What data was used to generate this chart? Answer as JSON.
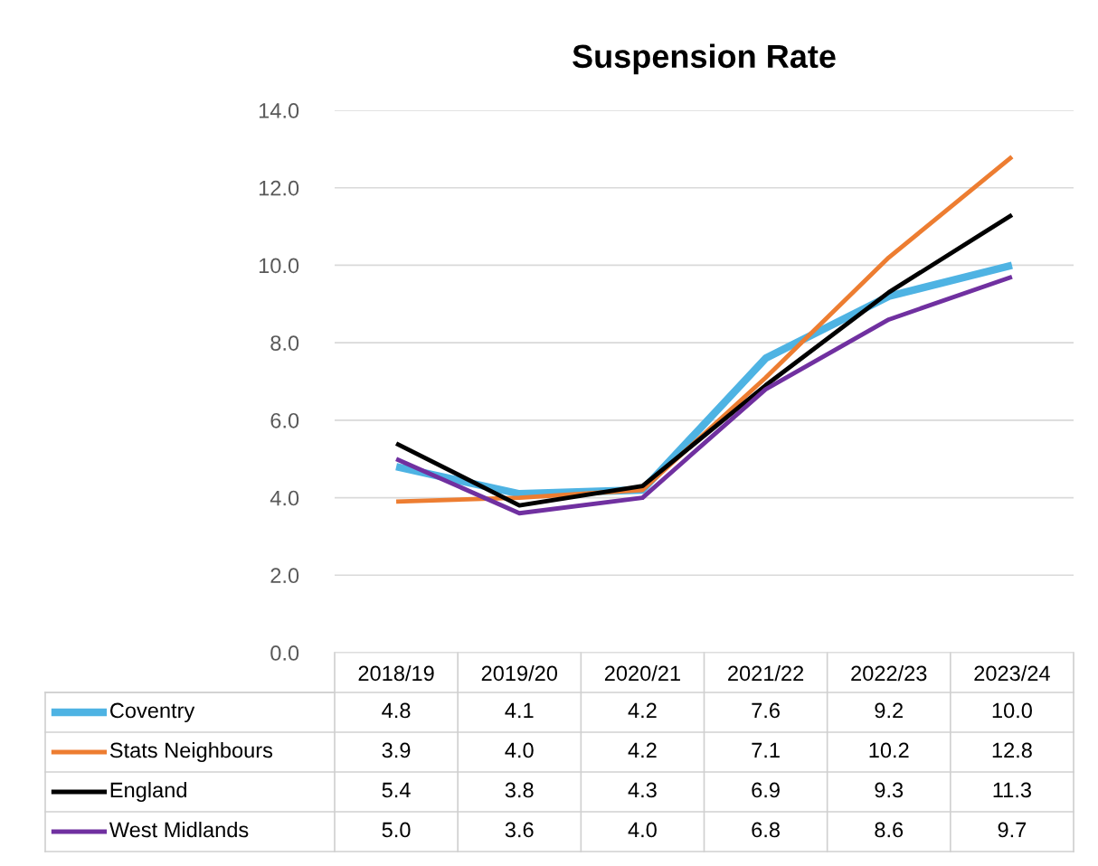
{
  "chart_data": {
    "type": "line",
    "title": "Suspension Rate",
    "categories": [
      "2018/19",
      "2019/20",
      "2020/21",
      "2021/22",
      "2022/23",
      "2023/24"
    ],
    "series": [
      {
        "name": "Coventry",
        "color": "#4eb3e3",
        "values": [
          4.8,
          4.1,
          4.2,
          7.6,
          9.2,
          10.0
        ],
        "value_labels": [
          "4.8",
          "4.1",
          "4.2",
          "7.6",
          "9.2",
          "10.0"
        ]
      },
      {
        "name": "Stats Neighbours",
        "color": "#ed7d31",
        "values": [
          3.9,
          4.0,
          4.2,
          7.1,
          10.2,
          12.8
        ],
        "value_labels": [
          "3.9",
          "4.0",
          "4.2",
          "7.1",
          "10.2",
          "12.8"
        ]
      },
      {
        "name": "England",
        "color": "#000000",
        "values": [
          5.4,
          3.8,
          4.3,
          6.9,
          9.3,
          11.3
        ],
        "value_labels": [
          "5.4",
          "3.8",
          "4.3",
          "6.9",
          "9.3",
          "11.3"
        ]
      },
      {
        "name": "West Midlands",
        "color": "#7030a0",
        "values": [
          5.0,
          3.6,
          4.0,
          6.8,
          8.6,
          9.7
        ],
        "value_labels": [
          "5.0",
          "3.6",
          "4.0",
          "6.8",
          "8.6",
          "9.7"
        ]
      }
    ],
    "ylim": [
      0,
      14
    ],
    "yticks": [
      {
        "value": 0,
        "label": "0.0"
      },
      {
        "value": 2,
        "label": "2.0"
      },
      {
        "value": 4,
        "label": "4.0"
      },
      {
        "value": 6,
        "label": "6.0"
      },
      {
        "value": 8,
        "label": "8.0"
      },
      {
        "value": 10,
        "label": "10.0"
      },
      {
        "value": 12,
        "label": "12.0"
      },
      {
        "value": 14,
        "label": "14.0"
      }
    ],
    "grid": "y",
    "legend": "bottom left",
    "marker": "none",
    "line_style": "solid"
  }
}
